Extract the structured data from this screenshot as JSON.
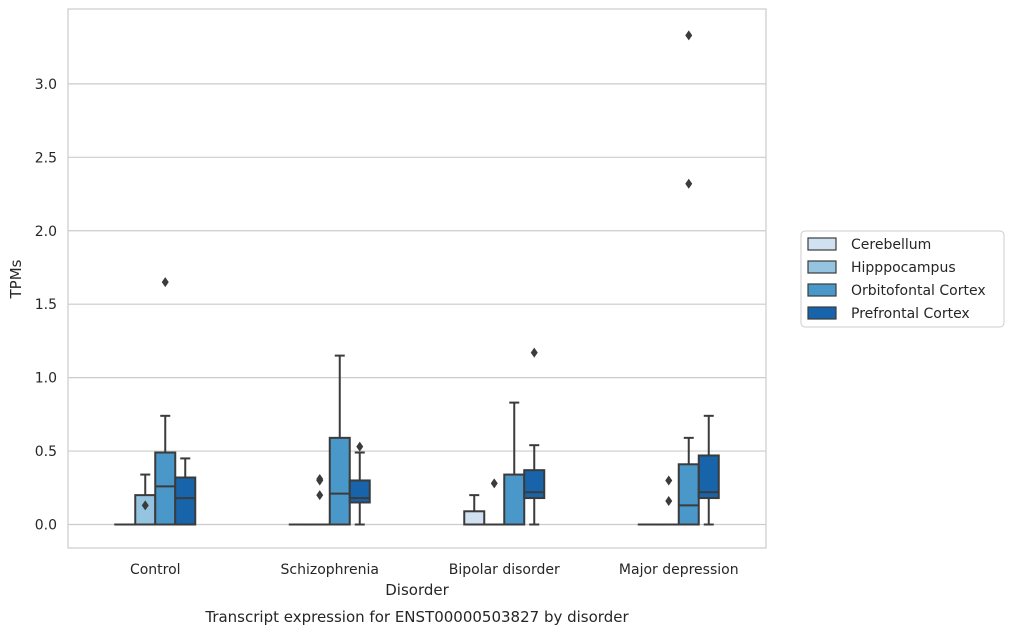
{
  "chart_data": {
    "type": "box",
    "xlabel": "Disorder",
    "ylabel": "TPMs",
    "caption": "Transcript expression for ENST00000503827 by disorder",
    "ylim": [
      -0.16,
      3.51
    ],
    "yticks": [
      0.0,
      0.5,
      1.0,
      1.5,
      2.0,
      2.5,
      3.0
    ],
    "ytick_labels": [
      "0.0",
      "0.5",
      "1.0",
      "1.5",
      "2.0",
      "2.5",
      "3.0"
    ],
    "grid": "horizontal",
    "legend_position": "right",
    "categories": [
      "Control",
      "Schizophrenia",
      "Bipolar disorder",
      "Major depression"
    ],
    "series": [
      {
        "name": "Cerebellum",
        "color": "#d0e1f2",
        "boxes": [
          {
            "q1": 0.0,
            "median": 0.0,
            "q3": 0.0,
            "whisker_low": 0.0,
            "whisker_high": 0.0,
            "outliers": []
          },
          {
            "q1": 0.0,
            "median": 0.0,
            "q3": 0.0,
            "whisker_low": 0.0,
            "whisker_high": 0.0,
            "outliers": []
          },
          {
            "q1": 0.0,
            "median": 0.0,
            "q3": 0.09,
            "whisker_low": 0.0,
            "whisker_high": 0.2,
            "outliers": []
          },
          {
            "q1": 0.0,
            "median": 0.0,
            "q3": 0.0,
            "whisker_low": 0.0,
            "whisker_high": 0.0,
            "outliers": []
          }
        ]
      },
      {
        "name": "Hipppocampus",
        "color": "#94c4df",
        "boxes": [
          {
            "q1": 0.0,
            "median": 0.0,
            "q3": 0.2,
            "whisker_low": 0.0,
            "whisker_high": 0.34,
            "outliers": [
              0.13
            ]
          },
          {
            "q1": 0.0,
            "median": 0.0,
            "q3": 0.0,
            "whisker_low": 0.0,
            "whisker_high": 0.0,
            "outliers": [
              0.2,
              0.3,
              0.31
            ]
          },
          {
            "q1": 0.0,
            "median": 0.0,
            "q3": 0.0,
            "whisker_low": 0.0,
            "whisker_high": 0.0,
            "outliers": [
              0.28
            ]
          },
          {
            "q1": 0.0,
            "median": 0.0,
            "q3": 0.0,
            "whisker_low": 0.0,
            "whisker_high": 0.0,
            "outliers": [
              0.16,
              0.3
            ]
          }
        ]
      },
      {
        "name": "Orbitofontal Cortex",
        "color": "#4a98c9",
        "boxes": [
          {
            "q1": 0.0,
            "median": 0.26,
            "q3": 0.49,
            "whisker_low": 0.0,
            "whisker_high": 0.74,
            "outliers": [
              1.65
            ]
          },
          {
            "q1": 0.0,
            "median": 0.21,
            "q3": 0.59,
            "whisker_low": 0.0,
            "whisker_high": 1.15,
            "outliers": []
          },
          {
            "q1": 0.0,
            "median": 0.0,
            "q3": 0.34,
            "whisker_low": 0.0,
            "whisker_high": 0.83,
            "outliers": []
          },
          {
            "q1": 0.0,
            "median": 0.13,
            "q3": 0.41,
            "whisker_low": 0.0,
            "whisker_high": 0.59,
            "outliers": [
              2.32,
              3.33
            ]
          }
        ]
      },
      {
        "name": "Prefrontal Cortex",
        "color": "#1764ab",
        "boxes": [
          {
            "q1": 0.0,
            "median": 0.18,
            "q3": 0.32,
            "whisker_low": 0.0,
            "whisker_high": 0.45,
            "outliers": []
          },
          {
            "q1": 0.15,
            "median": 0.18,
            "q3": 0.3,
            "whisker_low": 0.0,
            "whisker_high": 0.49,
            "outliers": [
              0.53
            ]
          },
          {
            "q1": 0.18,
            "median": 0.22,
            "q3": 0.37,
            "whisker_low": 0.0,
            "whisker_high": 0.54,
            "outliers": [
              1.17
            ]
          },
          {
            "q1": 0.18,
            "median": 0.22,
            "q3": 0.47,
            "whisker_low": 0.0,
            "whisker_high": 0.74,
            "outliers": []
          }
        ]
      }
    ]
  }
}
